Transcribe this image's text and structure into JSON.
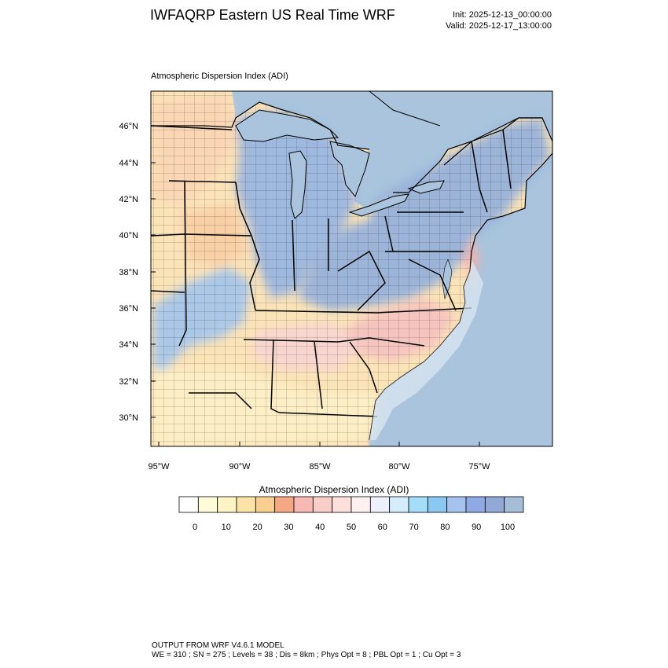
{
  "header": {
    "title": "IWFAQRP Eastern US Real Time WRF",
    "init": "Init: 2025-12-13_00:00:00",
    "valid": "Valid: 2025-12-17_13:00:00"
  },
  "map": {
    "subtitle": "Atmospheric Dispersion Index   (ADI)",
    "lat_ticks": [
      "46°N",
      "44°N",
      "42°N",
      "40°N",
      "38°N",
      "36°N",
      "34°N",
      "32°N",
      "30°N"
    ],
    "lon_ticks": [
      "95°W",
      "90°W",
      "85°W",
      "80°W",
      "75°W"
    ],
    "colors": {
      "water": "#a9c4dc",
      "land_low": "#fbe3b8",
      "land_mid": "#f7c9c3",
      "land_high": "#9bb6df",
      "borders": "#000000"
    },
    "features": [
      "state-boundaries",
      "county-boundaries",
      "coastlines",
      "great-lakes"
    ]
  },
  "colorbar": {
    "title": "Atmospheric Dispersion Index   (ADI)",
    "tick_labels": [
      "0",
      "10",
      "20",
      "30",
      "40",
      "50",
      "60",
      "70",
      "80",
      "90",
      "100"
    ],
    "colors": [
      "#ffffff",
      "#fefcd8",
      "#fdf3c4",
      "#fbe3a8",
      "#f9cf8f",
      "#f4a883",
      "#f6b9b3",
      "#f9cdc8",
      "#fbe0dc",
      "#fdf0ee",
      "#eef1fb",
      "#d4ecfb",
      "#a5dcf8",
      "#8ac7f1",
      "#a6c2ee",
      "#8ea9e4",
      "#92a8d6",
      "#a6bdd8"
    ]
  },
  "footer": {
    "line1": "OUTPUT FROM WRF V4.6.1 MODEL",
    "line2": "WE = 310 ; SN = 275 ; Levels = 38 ; Dis = 8km ; Phys Opt = 8 ; PBL Opt = 1 ; Cu Opt = 3"
  }
}
